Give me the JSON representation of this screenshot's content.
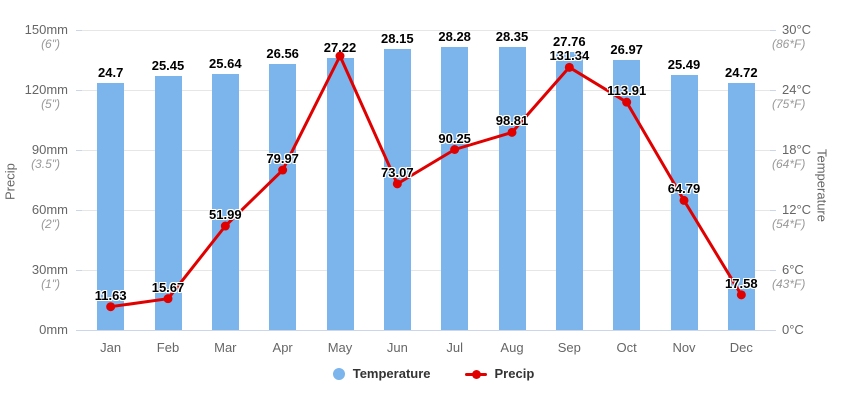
{
  "chart_data": {
    "type": "bar+line combo climate chart",
    "categories": [
      "Jan",
      "Feb",
      "Mar",
      "Apr",
      "May",
      "Jun",
      "Jul",
      "Aug",
      "Sep",
      "Oct",
      "Nov",
      "Dec"
    ],
    "series": [
      {
        "name": "Temperature",
        "type": "bar",
        "color": "#7cb5ec",
        "unit": "°C",
        "values": [
          24.7,
          25.45,
          25.64,
          26.56,
          27.22,
          28.15,
          28.28,
          28.35,
          27.76,
          26.97,
          25.49,
          24.72
        ],
        "labels": [
          "24.7",
          "25.45",
          "25.64",
          "26.56",
          "27.22",
          "28.15",
          "28.28",
          "28.35",
          "27.76",
          "26.97",
          "25.49",
          "24.72"
        ]
      },
      {
        "name": "Precip",
        "type": "line",
        "color": "#e00000",
        "unit": "mm",
        "values": [
          11.63,
          15.67,
          51.99,
          79.97,
          137,
          73.07,
          90.25,
          98.81,
          131.34,
          113.91,
          64.79,
          17.58
        ],
        "labels": [
          "11.63",
          "15.67",
          "51.99",
          "79.97",
          null,
          "73.07",
          "90.25",
          "98.81",
          "131.34",
          "113.91",
          "64.79",
          "17.58"
        ]
      }
    ],
    "y_left": {
      "title": "Precip",
      "range": [
        0,
        150
      ],
      "ticks": [
        {
          "primary": "150mm",
          "secondary": "(6\")"
        },
        {
          "primary": "120mm",
          "secondary": "(5\")"
        },
        {
          "primary": "90mm",
          "secondary": "(3.5\")"
        },
        {
          "primary": "60mm",
          "secondary": "(2\")"
        },
        {
          "primary": "30mm",
          "secondary": "(1\")"
        },
        {
          "primary": "0mm",
          "secondary": ""
        }
      ]
    },
    "y_right": {
      "title": "Temperature",
      "range": [
        0,
        30
      ],
      "ticks": [
        {
          "primary": "30°C",
          "secondary": "(86*F)"
        },
        {
          "primary": "24°C",
          "secondary": "(75*F)"
        },
        {
          "primary": "18°C",
          "secondary": "(64*F)"
        },
        {
          "primary": "12°C",
          "secondary": "(54*F)"
        },
        {
          "primary": "6°C",
          "secondary": "(43*F)"
        },
        {
          "primary": "0°C",
          "secondary": ""
        }
      ]
    },
    "legend": [
      {
        "label": "Temperature",
        "marker": "circle",
        "color": "#7cb5ec"
      },
      {
        "label": "Precip",
        "marker": "line-dot",
        "color": "#e00000"
      }
    ],
    "grid": {
      "on": true,
      "color": "#e6e6e6",
      "axis_line_color": "#ccd6eb"
    },
    "label_colors": {
      "data_label": "#000000",
      "axis_primary": "#666666",
      "axis_secondary": "#999999",
      "legend_text": "#333333"
    }
  }
}
